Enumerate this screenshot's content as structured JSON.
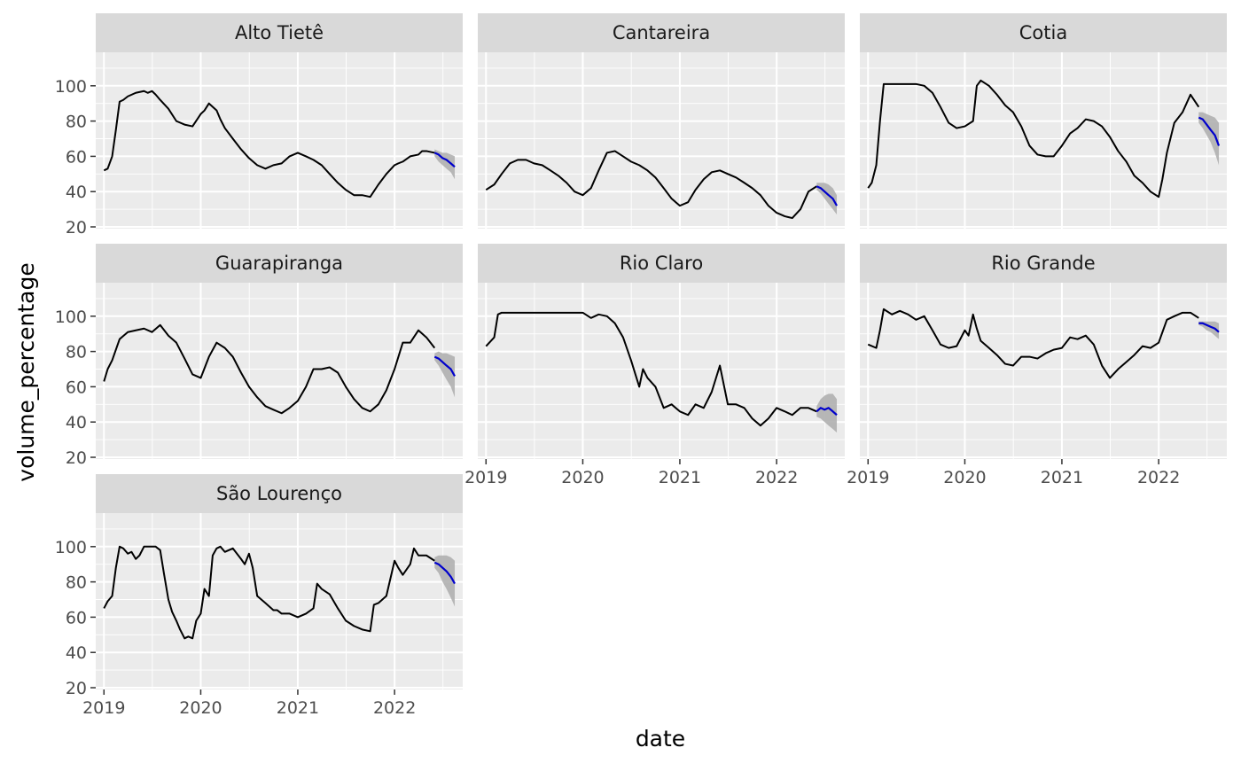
{
  "chart_data": {
    "type": "line",
    "xlabel": "date",
    "ylabel": "volume_percentage",
    "x_ticks": [
      "2019",
      "2020",
      "2021",
      "2022"
    ],
    "y_ticks": [
      20,
      40,
      60,
      80,
      100
    ],
    "xlim": [
      "2018-12-01",
      "2022-09-15"
    ],
    "ylim": [
      19,
      119
    ],
    "colors": {
      "observed": "#000000",
      "forecast": "#0000cc",
      "band": "#b0b0b0",
      "panel_bg": "#ebebeb",
      "strip_bg": "#d9d9d9",
      "grid": "#ffffff"
    },
    "grid": true,
    "forecast_dates": [
      "2022-06-01",
      "2022-06-16",
      "2022-07-01",
      "2022-07-16",
      "2022-08-01",
      "2022-08-16"
    ],
    "facets": [
      {
        "name": "Alto Tietê",
        "observed": {
          "dates": [
            "2019-01-01",
            "2019-01-15",
            "2019-02-01",
            "2019-02-15",
            "2019-03-01",
            "2019-03-15",
            "2019-04-01",
            "2019-05-01",
            "2019-06-01",
            "2019-06-15",
            "2019-07-01",
            "2019-07-15",
            "2019-08-01",
            "2019-09-01",
            "2019-10-01",
            "2019-11-01",
            "2019-12-01",
            "2020-01-01",
            "2020-01-15",
            "2020-02-01",
            "2020-03-01",
            "2020-03-15",
            "2020-04-01",
            "2020-05-01",
            "2020-06-01",
            "2020-07-01",
            "2020-08-01",
            "2020-09-01",
            "2020-10-01",
            "2020-11-01",
            "2020-12-01",
            "2021-01-01",
            "2021-02-01",
            "2021-03-01",
            "2021-04-01",
            "2021-05-01",
            "2021-06-01",
            "2021-07-01",
            "2021-08-01",
            "2021-09-01",
            "2021-10-01",
            "2021-11-01",
            "2021-12-01",
            "2022-01-01",
            "2022-01-15",
            "2022-02-01",
            "2022-03-01",
            "2022-04-01",
            "2022-04-15",
            "2022-05-01",
            "2022-06-01"
          ],
          "values": [
            52,
            53,
            60,
            75,
            91,
            92,
            94,
            96,
            97,
            96,
            97,
            95,
            92,
            87,
            80,
            78,
            77,
            84,
            86,
            90,
            86,
            81,
            76,
            70,
            64,
            59,
            55,
            53,
            55,
            56,
            60,
            62,
            60,
            58,
            55,
            50,
            45,
            41,
            38,
            38,
            37,
            44,
            50,
            55,
            56,
            57,
            60,
            61,
            63,
            63,
            62
          ]
        },
        "forecast": {
          "mean": [
            62,
            61,
            59,
            58,
            56,
            54
          ],
          "lower": [
            60,
            57,
            55,
            53,
            51,
            47
          ],
          "upper": [
            64,
            63,
            62,
            62,
            61,
            60
          ]
        }
      },
      {
        "name": "Cantareira",
        "observed": {
          "dates": [
            "2019-01-01",
            "2019-02-01",
            "2019-03-01",
            "2019-04-01",
            "2019-05-01",
            "2019-06-01",
            "2019-07-01",
            "2019-08-01",
            "2019-09-01",
            "2019-10-01",
            "2019-11-01",
            "2019-12-01",
            "2020-01-01",
            "2020-02-01",
            "2020-03-01",
            "2020-04-01",
            "2020-05-01",
            "2020-06-01",
            "2020-07-01",
            "2020-08-01",
            "2020-09-01",
            "2020-10-01",
            "2020-11-01",
            "2020-12-01",
            "2021-01-01",
            "2021-02-01",
            "2021-03-01",
            "2021-04-01",
            "2021-05-01",
            "2021-06-01",
            "2021-07-01",
            "2021-08-01",
            "2021-09-01",
            "2021-10-01",
            "2021-11-01",
            "2021-12-01",
            "2022-01-01",
            "2022-02-01",
            "2022-03-01",
            "2022-04-01",
            "2022-05-01",
            "2022-06-01"
          ],
          "values": [
            41,
            44,
            50,
            56,
            58,
            58,
            56,
            55,
            52,
            49,
            45,
            40,
            38,
            42,
            52,
            62,
            63,
            60,
            57,
            55,
            52,
            48,
            42,
            36,
            32,
            34,
            41,
            47,
            51,
            52,
            50,
            48,
            45,
            42,
            38,
            32,
            28,
            26,
            25,
            30,
            40,
            43
          ]
        },
        "forecast": {
          "mean": [
            43,
            42,
            40,
            38,
            36,
            32
          ],
          "lower": [
            41,
            39,
            36,
            33,
            30,
            27
          ],
          "upper": [
            45,
            45,
            45,
            44,
            42,
            38
          ]
        }
      },
      {
        "name": "Cotia",
        "observed": {
          "dates": [
            "2019-01-01",
            "2019-01-15",
            "2019-02-01",
            "2019-02-15",
            "2019-03-01",
            "2019-04-01",
            "2019-05-01",
            "2019-06-01",
            "2019-07-01",
            "2019-08-01",
            "2019-09-01",
            "2019-10-01",
            "2019-11-01",
            "2019-12-01",
            "2020-01-01",
            "2020-02-01",
            "2020-02-15",
            "2020-03-01",
            "2020-04-01",
            "2020-05-01",
            "2020-06-01",
            "2020-07-01",
            "2020-08-01",
            "2020-09-01",
            "2020-10-01",
            "2020-11-01",
            "2020-12-01",
            "2021-01-01",
            "2021-02-01",
            "2021-03-01",
            "2021-04-01",
            "2021-05-01",
            "2021-06-01",
            "2021-07-01",
            "2021-08-01",
            "2021-09-01",
            "2021-10-01",
            "2021-11-01",
            "2021-12-01",
            "2022-01-01",
            "2022-01-15",
            "2022-02-01",
            "2022-03-01",
            "2022-04-01",
            "2022-05-01",
            "2022-06-01"
          ],
          "values": [
            42,
            45,
            55,
            80,
            101,
            101,
            101,
            101,
            101,
            100,
            96,
            88,
            79,
            76,
            77,
            80,
            100,
            103,
            100,
            95,
            89,
            85,
            77,
            66,
            61,
            60,
            60,
            66,
            73,
            76,
            81,
            80,
            77,
            71,
            63,
            57,
            49,
            45,
            40,
            37,
            47,
            62,
            79,
            85,
            95,
            88
          ]
        },
        "forecast": {
          "mean": [
            82,
            81,
            78,
            75,
            72,
            66
          ],
          "lower": [
            79,
            76,
            72,
            68,
            62,
            55
          ],
          "upper": [
            85,
            85,
            84,
            83,
            82,
            79
          ]
        }
      },
      {
        "name": "Guarapiranga",
        "observed": {
          "dates": [
            "2019-01-01",
            "2019-01-15",
            "2019-02-01",
            "2019-03-01",
            "2019-04-01",
            "2019-05-01",
            "2019-06-01",
            "2019-07-01",
            "2019-08-01",
            "2019-09-01",
            "2019-10-01",
            "2019-11-01",
            "2019-12-01",
            "2020-01-01",
            "2020-02-01",
            "2020-03-01",
            "2020-04-01",
            "2020-05-01",
            "2020-06-01",
            "2020-07-01",
            "2020-08-01",
            "2020-09-01",
            "2020-10-01",
            "2020-11-01",
            "2020-12-01",
            "2021-01-01",
            "2021-02-01",
            "2021-03-01",
            "2021-04-01",
            "2021-05-01",
            "2021-06-01",
            "2021-07-01",
            "2021-08-01",
            "2021-09-01",
            "2021-10-01",
            "2021-11-01",
            "2021-12-01",
            "2022-01-01",
            "2022-02-01",
            "2022-03-01",
            "2022-04-01",
            "2022-05-01",
            "2022-06-01"
          ],
          "values": [
            63,
            70,
            75,
            87,
            91,
            92,
            93,
            91,
            95,
            89,
            85,
            76,
            67,
            65,
            77,
            85,
            82,
            77,
            68,
            60,
            54,
            49,
            47,
            45,
            48,
            52,
            60,
            70,
            70,
            71,
            68,
            60,
            53,
            48,
            46,
            50,
            58,
            70,
            85,
            85,
            92,
            88,
            82
          ]
        },
        "forecast": {
          "mean": [
            77,
            76,
            74,
            72,
            70,
            66
          ],
          "lower": [
            75,
            72,
            68,
            64,
            60,
            54
          ],
          "upper": [
            79,
            80,
            79,
            79,
            78,
            77
          ]
        }
      },
      {
        "name": "Rio Claro",
        "observed": {
          "dates": [
            "2019-01-01",
            "2019-02-01",
            "2019-02-15",
            "2019-03-01",
            "2019-04-01",
            "2019-05-01",
            "2019-06-01",
            "2019-07-01",
            "2019-08-01",
            "2019-09-01",
            "2019-10-01",
            "2019-11-01",
            "2019-12-01",
            "2020-01-01",
            "2020-02-01",
            "2020-03-01",
            "2020-04-01",
            "2020-05-01",
            "2020-06-01",
            "2020-07-01",
            "2020-08-01",
            "2020-08-15",
            "2020-09-01",
            "2020-10-01",
            "2020-11-01",
            "2020-12-01",
            "2021-01-01",
            "2021-02-01",
            "2021-03-01",
            "2021-04-01",
            "2021-05-01",
            "2021-06-01",
            "2021-07-01",
            "2021-08-01",
            "2021-09-01",
            "2021-10-01",
            "2021-11-01",
            "2021-12-01",
            "2022-01-01",
            "2022-02-01",
            "2022-03-01",
            "2022-04-01",
            "2022-05-01",
            "2022-06-01"
          ],
          "values": [
            83,
            88,
            101,
            102,
            102,
            102,
            102,
            102,
            102,
            102,
            102,
            102,
            102,
            102,
            99,
            101,
            100,
            96,
            88,
            75,
            60,
            70,
            65,
            60,
            48,
            50,
            46,
            44,
            50,
            48,
            57,
            72,
            50,
            50,
            48,
            42,
            38,
            42,
            48,
            46,
            44,
            48,
            48,
            46
          ]
        },
        "forecast": {
          "mean": [
            46,
            48,
            47,
            48,
            46,
            44
          ],
          "lower": [
            43,
            42,
            40,
            38,
            36,
            34
          ],
          "upper": [
            49,
            53,
            55,
            56,
            56,
            53
          ]
        }
      },
      {
        "name": "Rio Grande",
        "observed": {
          "dates": [
            "2019-01-01",
            "2019-02-01",
            "2019-02-15",
            "2019-03-01",
            "2019-04-01",
            "2019-05-01",
            "2019-06-01",
            "2019-07-01",
            "2019-08-01",
            "2019-09-01",
            "2019-10-01",
            "2019-11-01",
            "2019-12-01",
            "2020-01-01",
            "2020-01-15",
            "2020-02-01",
            "2020-02-15",
            "2020-03-01",
            "2020-04-01",
            "2020-05-01",
            "2020-06-01",
            "2020-07-01",
            "2020-08-01",
            "2020-09-01",
            "2020-10-01",
            "2020-11-01",
            "2020-12-01",
            "2021-01-01",
            "2021-02-01",
            "2021-03-01",
            "2021-04-01",
            "2021-05-01",
            "2021-06-01",
            "2021-07-01",
            "2021-08-01",
            "2021-09-01",
            "2021-10-01",
            "2021-11-01",
            "2021-12-01",
            "2022-01-01",
            "2022-02-01",
            "2022-03-01",
            "2022-04-01",
            "2022-05-01",
            "2022-06-01"
          ],
          "values": [
            84,
            82,
            92,
            104,
            101,
            103,
            101,
            98,
            100,
            92,
            84,
            82,
            83,
            92,
            89,
            101,
            93,
            86,
            82,
            78,
            73,
            72,
            77,
            77,
            76,
            79,
            81,
            82,
            88,
            87,
            89,
            84,
            72,
            65,
            70,
            74,
            78,
            83,
            82,
            85,
            98,
            100,
            102,
            102,
            99
          ]
        },
        "forecast": {
          "mean": [
            96,
            96,
            95,
            94,
            93,
            91
          ],
          "lower": [
            95,
            94,
            92,
            91,
            89,
            87
          ],
          "upper": [
            97,
            97,
            97,
            97,
            97,
            96
          ]
        }
      },
      {
        "name": "São Lourenço",
        "observed": {
          "dates": [
            "2019-01-01",
            "2019-01-15",
            "2019-02-01",
            "2019-02-15",
            "2019-03-01",
            "2019-03-15",
            "2019-04-01",
            "2019-04-15",
            "2019-05-01",
            "2019-05-15",
            "2019-06-01",
            "2019-06-15",
            "2019-07-01",
            "2019-07-15",
            "2019-08-01",
            "2019-08-15",
            "2019-09-01",
            "2019-09-15",
            "2019-10-01",
            "2019-10-15",
            "2019-11-01",
            "2019-11-15",
            "2019-12-01",
            "2019-12-15",
            "2020-01-01",
            "2020-01-15",
            "2020-02-01",
            "2020-02-15",
            "2020-03-01",
            "2020-03-15",
            "2020-04-01",
            "2020-05-01",
            "2020-06-01",
            "2020-06-15",
            "2020-07-01",
            "2020-07-15",
            "2020-08-01",
            "2020-09-01",
            "2020-10-01",
            "2020-10-15",
            "2020-11-01",
            "2020-12-01",
            "2021-01-01",
            "2021-02-01",
            "2021-03-01",
            "2021-03-15",
            "2021-04-01",
            "2021-05-01",
            "2021-06-01",
            "2021-07-01",
            "2021-08-01",
            "2021-09-01",
            "2021-10-01",
            "2021-10-15",
            "2021-11-01",
            "2021-12-01",
            "2022-01-01",
            "2022-01-15",
            "2022-02-01",
            "2022-03-01",
            "2022-03-15",
            "2022-04-01",
            "2022-05-01",
            "2022-06-01"
          ],
          "values": [
            65,
            69,
            72,
            88,
            100,
            99,
            96,
            97,
            93,
            95,
            100,
            100,
            100,
            100,
            98,
            85,
            70,
            63,
            58,
            53,
            48,
            49,
            48,
            58,
            62,
            76,
            72,
            95,
            99,
            100,
            97,
            99,
            93,
            90,
            96,
            88,
            72,
            68,
            64,
            64,
            62,
            62,
            60,
            62,
            65,
            79,
            76,
            73,
            65,
            58,
            55,
            53,
            52,
            67,
            68,
            72,
            92,
            88,
            84,
            90,
            99,
            95,
            95,
            92
          ]
        },
        "forecast": {
          "mean": [
            91,
            90,
            88,
            86,
            83,
            79
          ],
          "lower": [
            88,
            85,
            80,
            76,
            71,
            66
          ],
          "upper": [
            94,
            95,
            95,
            95,
            94,
            92
          ]
        }
      }
    ]
  }
}
